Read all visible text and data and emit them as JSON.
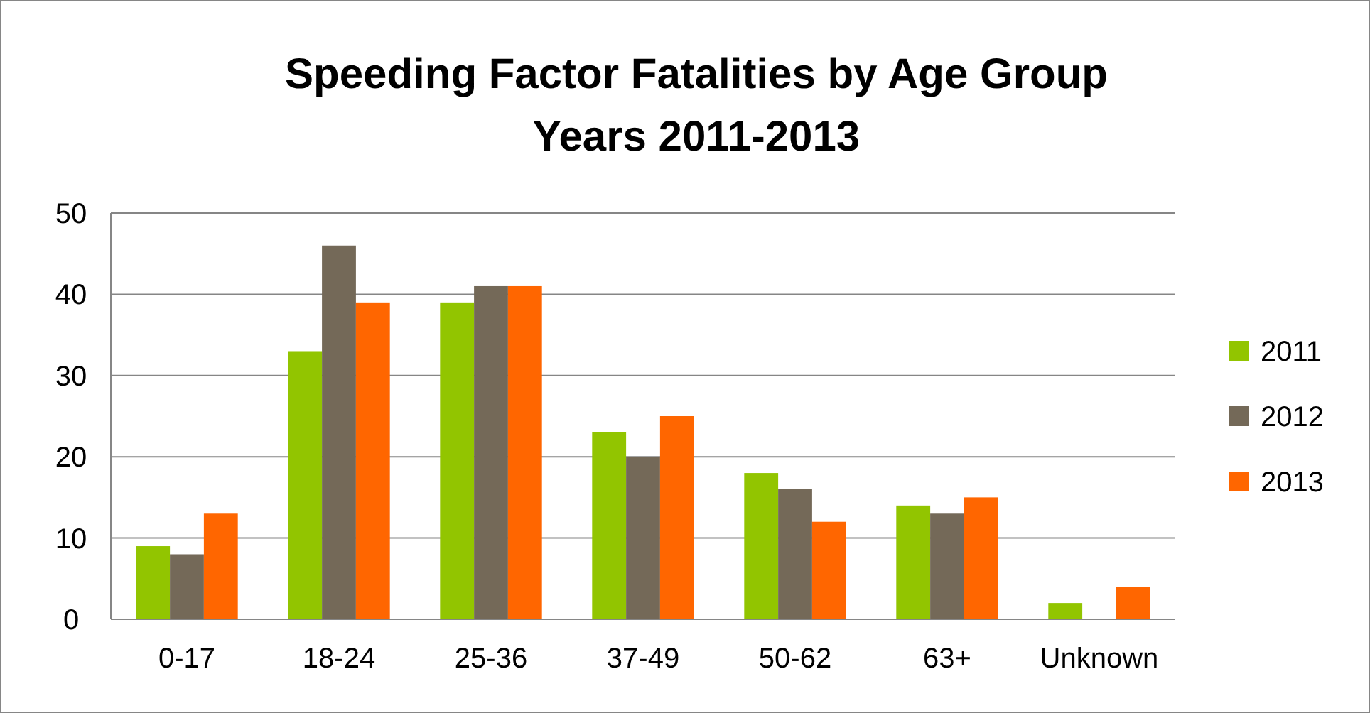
{
  "chart_data": {
    "type": "bar",
    "title": "Speeding Factor Fatalities by Age Group\nYears 2011-2013",
    "categories": [
      "0-17",
      "18-24",
      "25-36",
      "37-49",
      "50-62",
      "63+",
      "Unknown"
    ],
    "series": [
      {
        "name": "2011",
        "color": "#92c500",
        "values": [
          9,
          33,
          39,
          23,
          18,
          14,
          2
        ]
      },
      {
        "name": "2012",
        "color": "#746958",
        "values": [
          8,
          46,
          41,
          20,
          16,
          13,
          0
        ]
      },
      {
        "name": "2013",
        "color": "#ff6600",
        "values": [
          13,
          39,
          41,
          25,
          12,
          15,
          4
        ]
      }
    ],
    "ylim": [
      0,
      50
    ],
    "yticks": [
      0,
      10,
      20,
      30,
      40,
      50
    ],
    "grid": "y",
    "legend": "right"
  }
}
